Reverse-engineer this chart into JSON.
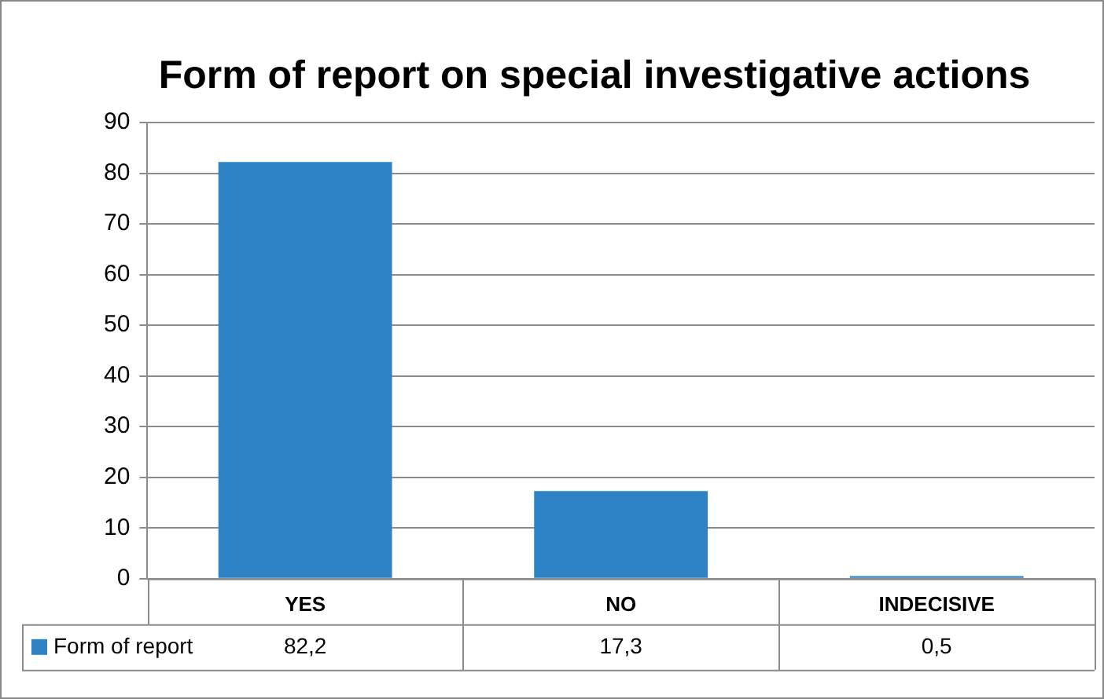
{
  "chart_data": {
    "type": "bar",
    "title": "Form of report on special investigative actions",
    "categories": [
      "YES",
      "NO",
      "INDECISIVE"
    ],
    "series": [
      {
        "name": "Form of report",
        "color": "#2e83c6",
        "values": [
          82.2,
          17.3,
          0.5
        ],
        "value_labels": [
          "82,2",
          "17,3",
          "0,5"
        ]
      }
    ],
    "ylim": [
      0,
      90
    ],
    "yticks": [
      0,
      10,
      20,
      30,
      40,
      50,
      60,
      70,
      80,
      90
    ],
    "grid": "y",
    "legend": "bottom"
  }
}
